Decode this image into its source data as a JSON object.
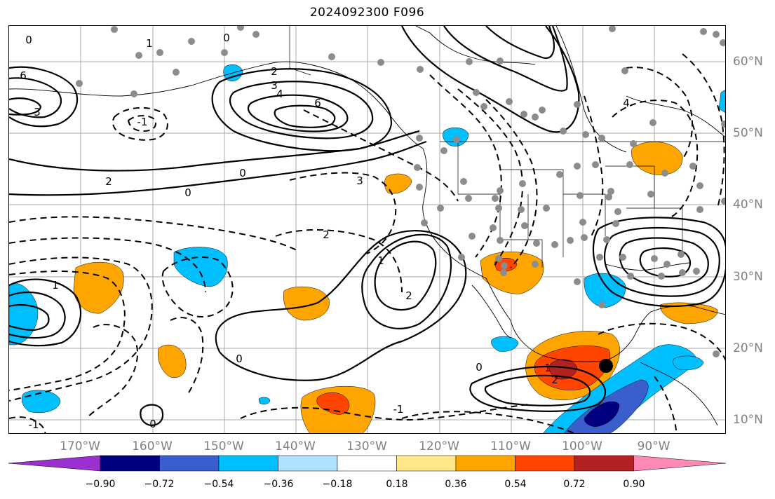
{
  "title": "2024092300 F096",
  "map": {
    "lat_labels": [
      "60°N",
      "50°N",
      "40°N",
      "30°N",
      "20°N",
      "10°N"
    ],
    "lon_labels": [
      "170°W",
      "160°W",
      "150°W",
      "140°W",
      "130°W",
      "120°W",
      "110°W",
      "100°W",
      "90°W"
    ],
    "contour_labels": [
      "0",
      "1",
      "2",
      "3",
      "4",
      "6",
      "0",
      "0",
      "2",
      "3",
      "4",
      "6",
      "0",
      "3",
      "2",
      "1",
      "-1",
      "0",
      "-1",
      "1",
      "0",
      "2",
      "-1",
      "1",
      "2",
      "0"
    ],
    "colors": {
      "grid": "#a9a9a9",
      "contour": "#000000",
      "station_dot": "#8c8c8c",
      "storm_marker": "#000000"
    }
  },
  "colorbar": {
    "ticks": [
      "−0.90",
      "−0.72",
      "−0.54",
      "−0.36",
      "−0.18",
      "0.18",
      "0.36",
      "0.54",
      "0.72",
      "0.90"
    ],
    "colors": [
      "#9b30d0",
      "#000080",
      "#3a5fcd",
      "#00bfff",
      "#b0e2ff",
      "#ffffff",
      "#ffe88a",
      "#ffa500",
      "#ff4500",
      "#b22222",
      "#ff89b5"
    ]
  }
}
